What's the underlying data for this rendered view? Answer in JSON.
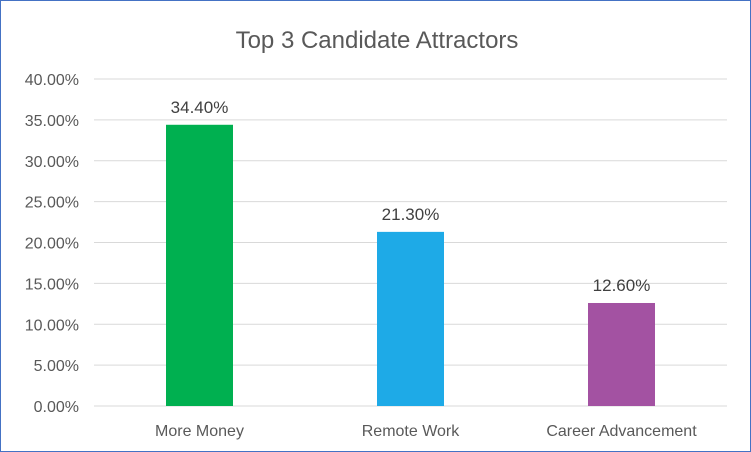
{
  "chart_data": {
    "type": "bar",
    "title": "Top 3 Candidate Attractors",
    "categories": [
      "More Money",
      "Remote Work",
      "Career Advancement"
    ],
    "values": [
      34.4,
      21.3,
      12.6
    ],
    "data_labels": [
      "34.40%",
      "21.30%",
      "12.60%"
    ],
    "bar_colors": [
      "#00b050",
      "#1eaae7",
      "#a352a2"
    ],
    "ylim": [
      0,
      40
    ],
    "y_ticks": [
      {
        "value": 0,
        "label": "0.00%"
      },
      {
        "value": 5,
        "label": "5.00%"
      },
      {
        "value": 10,
        "label": "10.00%"
      },
      {
        "value": 15,
        "label": "15.00%"
      },
      {
        "value": 20,
        "label": "20.00%"
      },
      {
        "value": 25,
        "label": "25.00%"
      },
      {
        "value": 30,
        "label": "30.00%"
      },
      {
        "value": 35,
        "label": "35.00%"
      },
      {
        "value": 40,
        "label": "40.00%"
      }
    ],
    "xlabel": "",
    "ylabel": "",
    "grid": true,
    "legend": "none",
    "gridline_color": "#d9d9d9",
    "frame_color": "#4472c4"
  }
}
